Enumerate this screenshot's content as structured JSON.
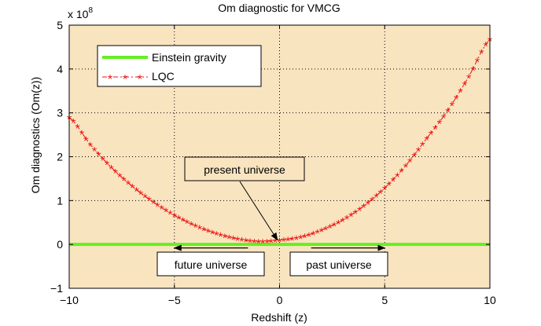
{
  "chart_data": {
    "type": "line",
    "title": "Om diagnostic for VMCG",
    "xlabel": "Redshift (z)",
    "ylabel": "Om diagnostics (Om(z))",
    "y_multiplier": "x 10",
    "y_exponent": "8",
    "xlim": [
      -10,
      10
    ],
    "ylim": [
      -1,
      5
    ],
    "grid": true,
    "xticks": [
      -10,
      -5,
      0,
      5,
      10
    ],
    "xtick_labels": [
      "−10",
      "−5",
      "0",
      "5",
      "10"
    ],
    "yticks": [
      -1,
      0,
      1,
      2,
      3,
      4,
      5
    ],
    "ytick_labels": [
      "−1",
      "0",
      "1",
      "2",
      "3",
      "4",
      "5"
    ],
    "legend_position": "top-left",
    "series": [
      {
        "name": "Einstein gravity",
        "color": "#66ee22",
        "style": "solid-thick",
        "x": [
          -10,
          10
        ],
        "y": [
          0,
          0
        ]
      },
      {
        "name": "LQC",
        "color": "#ee1111",
        "style": "dashdot-star",
        "x": [
          -10,
          -9,
          -8,
          -7,
          -6,
          -5,
          -4,
          -3,
          -2,
          -1,
          0,
          1,
          2,
          3,
          4,
          5,
          6,
          7,
          8,
          9,
          10
        ],
        "y": [
          2.9,
          2.28,
          1.76,
          1.33,
          0.97,
          0.67,
          0.43,
          0.25,
          0.13,
          0.07,
          0.1,
          0.17,
          0.33,
          0.56,
          0.88,
          1.29,
          1.8,
          2.42,
          3.06,
          3.83,
          4.68
        ]
      }
    ],
    "annotations": [
      {
        "label": "present universe",
        "arrow_to_x": -0.1,
        "arrow_to_y": 0.1
      },
      {
        "label": "future universe",
        "arrow_direction": "left",
        "arrow_from_x": -1.5,
        "arrow_to_x": -5.0,
        "arrow_y": -0.08
      },
      {
        "label": "past universe",
        "arrow_direction": "right",
        "arrow_from_x": 1.5,
        "arrow_to_x": 5.0,
        "arrow_y": -0.08
      }
    ]
  }
}
